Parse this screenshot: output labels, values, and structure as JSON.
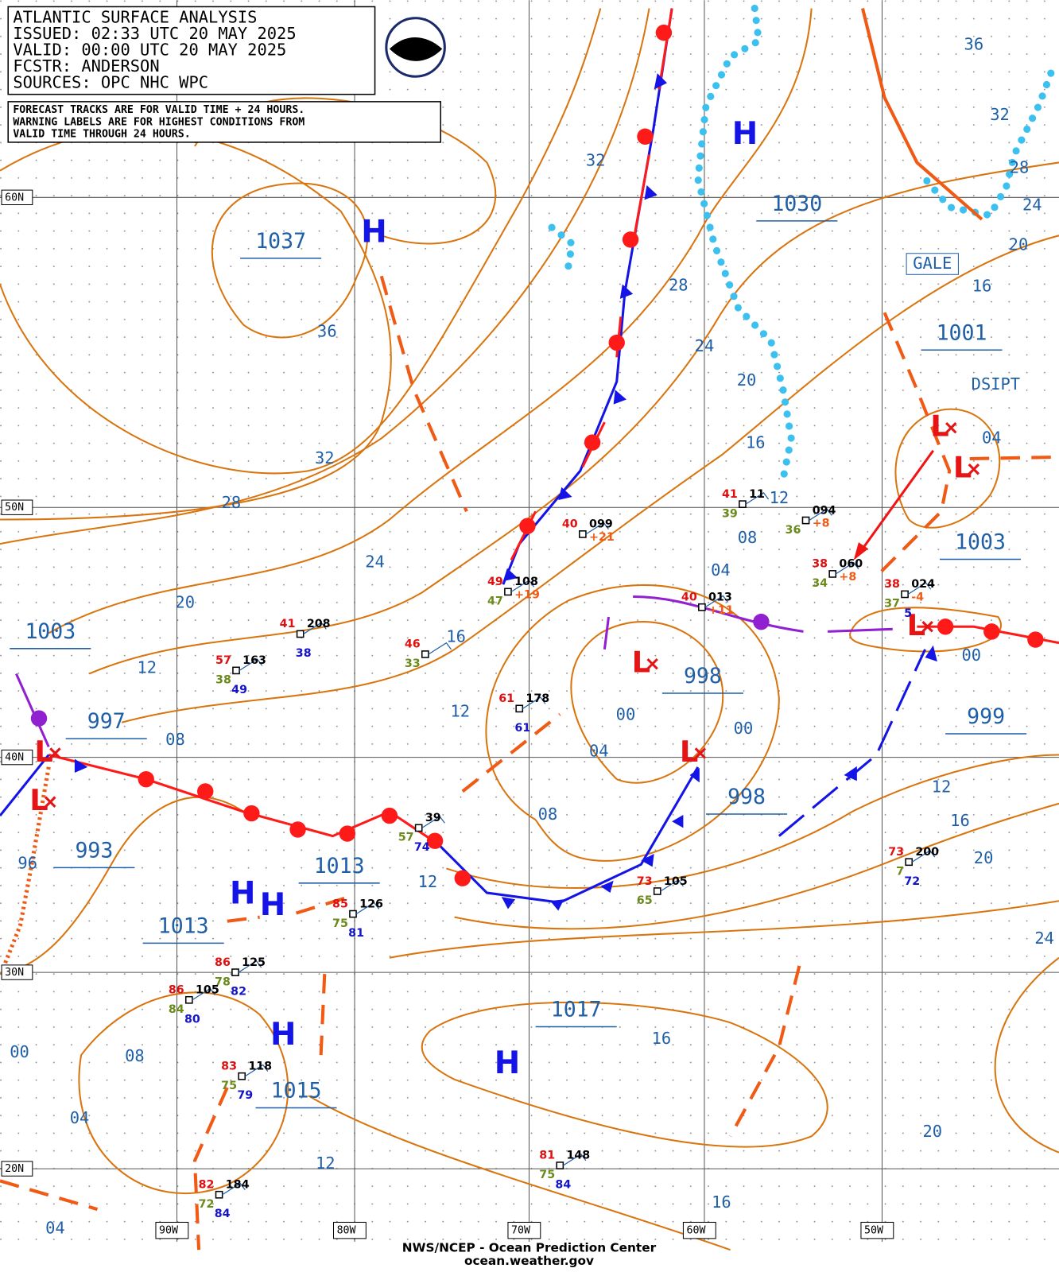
{
  "header": {
    "lines": [
      "ATLANTIC SURFACE ANALYSIS",
      "ISSUED: 02:33 UTC 20 MAY 2025",
      "VALID:  00:00 UTC 20 MAY 2025",
      "FCSTR:  ANDERSON",
      "SOURCES: OPC NHC WPC"
    ]
  },
  "notice": {
    "lines": [
      "FORECAST TRACKS ARE FOR VALID TIME + 24 HOURS.",
      "WARNING LABELS ARE FOR HIGHEST CONDITIONS FROM",
      "VALID TIME THROUGH 24 HOURS."
    ]
  },
  "grid": {
    "lat_labels": [
      "60N",
      "50N",
      "40N",
      "30N",
      "20N"
    ],
    "lon_labels": [
      "90W",
      "80W",
      "70W",
      "60W",
      "50W"
    ]
  },
  "pressure_labels": [
    "1037",
    "1030",
    "1001",
    "1003",
    "1003",
    "997",
    "998",
    "998",
    "999",
    "993",
    "1013",
    "1013",
    "1017",
    "1015"
  ],
  "high_symbols": [
    "H",
    "H",
    "H",
    "H",
    "H",
    "H"
  ],
  "low_symbols": [
    "L",
    "L",
    "L",
    "L",
    "L",
    "L",
    "L"
  ],
  "isobar_labels": [
    "36",
    "32",
    "28",
    "24",
    "20",
    "16",
    "04",
    "00",
    "12",
    "16",
    "20",
    "24",
    "32",
    "28",
    "24",
    "20",
    "16",
    "12",
    "08",
    "04",
    "36",
    "32",
    "28",
    "24",
    "20",
    "16",
    "12",
    "12",
    "08",
    "00",
    "04",
    "00",
    "08",
    "12",
    "96",
    "16",
    "08",
    "00",
    "04",
    "12",
    "20",
    "16",
    "04"
  ],
  "misc_labels": [
    "GALE",
    "DSIPT"
  ],
  "stations": [
    {
      "temp": "41",
      "pressure": "11",
      "dew": "39"
    },
    {
      "pressure": "094",
      "change": "+8",
      "dew": "36"
    },
    {
      "temp": "38",
      "pressure": "060",
      "change": "+8",
      "dew": "34"
    },
    {
      "temp": "38",
      "pressure": "024",
      "change": "-4",
      "dew": "37",
      "extra": "5"
    },
    {
      "temp": "40",
      "pressure": "013",
      "change": "+11"
    },
    {
      "temp": "40",
      "pressure": "099",
      "change": "+21"
    },
    {
      "temp": "49",
      "pressure": "108",
      "change": "+19",
      "dew": "47"
    },
    {
      "temp": "46",
      "dew": "33"
    },
    {
      "temp": "41",
      "pressure": "208",
      "extra": "38"
    },
    {
      "temp": "57",
      "pressure": "163",
      "dew": "38",
      "extra": "49"
    },
    {
      "temp": "61",
      "pressure": "178",
      "extra": "61"
    },
    {
      "pressure": "39",
      "dew": "57",
      "extra": "74"
    },
    {
      "temp": "73",
      "pressure": "105",
      "dew": "65"
    },
    {
      "temp": "73",
      "pressure": "200",
      "dew": "7",
      "extra": "72"
    },
    {
      "temp": "85",
      "pressure": "126",
      "dew": "75",
      "extra": "81"
    },
    {
      "temp": "86",
      "pressure": "125",
      "dew": "78",
      "extra": "82"
    },
    {
      "temp": "86",
      "pressure": "105",
      "dew": "84",
      "extra": "80"
    },
    {
      "temp": "83",
      "pressure": "118",
      "dew": "75",
      "extra": "79"
    },
    {
      "temp": "81",
      "pressure": "148",
      "dew": "75",
      "extra": "84"
    },
    {
      "temp": "82",
      "pressure": "184",
      "dew": "72",
      "extra": "84"
    }
  ],
  "footer": {
    "lines": [
      "NWS/NCEP - Ocean Prediction Center",
      "ocean.weather.gov"
    ]
  }
}
